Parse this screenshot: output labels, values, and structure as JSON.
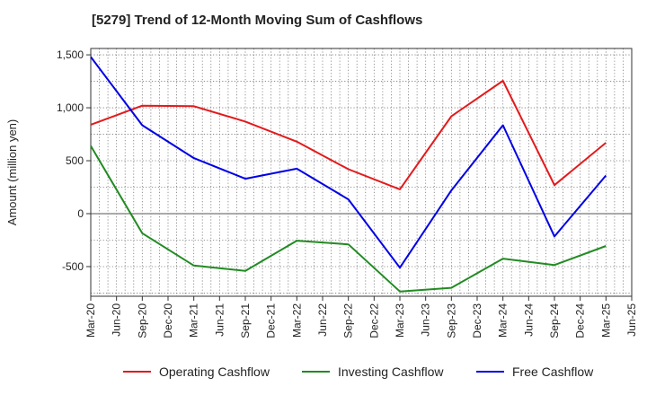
{
  "chart_data": {
    "type": "line",
    "title": "[5279]  Trend of 12-Month Moving Sum of Cashflows",
    "ylabel": "Amount (million yen)",
    "xlabel": "",
    "ylim": [
      -780,
      1560
    ],
    "yticks": [
      1500,
      1000,
      500,
      0,
      -500
    ],
    "ytick_labels": [
      "1,500",
      "1,000",
      "500",
      "0",
      "-500"
    ],
    "x_tick_labels": [
      "Mar-20",
      "Jun-20",
      "Sep-20",
      "Dec-20",
      "Mar-21",
      "Jun-21",
      "Sep-21",
      "Dec-21",
      "Mar-22",
      "Jun-22",
      "Sep-22",
      "Dec-22",
      "Mar-23",
      "Jun-23",
      "Sep-23",
      "Dec-23",
      "Mar-24",
      "Jun-24",
      "Sep-24",
      "Dec-24",
      "Mar-25",
      "Jun-25"
    ],
    "grid": true,
    "legend_position": "bottom",
    "series": [
      {
        "name": "Operating Cashflow",
        "color": "#e31a1c",
        "points": [
          [
            "Mar-20",
            840
          ],
          [
            "Sep-20",
            1020
          ],
          [
            "Mar-21",
            1015
          ],
          [
            "Sep-21",
            870
          ],
          [
            "Mar-22",
            680
          ],
          [
            "Sep-22",
            420
          ],
          [
            "Mar-23",
            230
          ],
          [
            "Sep-23",
            920
          ],
          [
            "Mar-24",
            1255
          ],
          [
            "Sep-24",
            270
          ],
          [
            "Mar-25",
            670
          ]
        ]
      },
      {
        "name": "Investing Cashflow",
        "color": "#228b22",
        "points": [
          [
            "Mar-20",
            640
          ],
          [
            "Sep-20",
            -185
          ],
          [
            "Mar-21",
            -490
          ],
          [
            "Sep-21",
            -540
          ],
          [
            "Mar-22",
            -255
          ],
          [
            "Sep-22",
            -290
          ],
          [
            "Mar-23",
            -735
          ],
          [
            "Sep-23",
            -700
          ],
          [
            "Mar-24",
            -425
          ],
          [
            "Sep-24",
            -485
          ],
          [
            "Mar-25",
            -305
          ]
        ]
      },
      {
        "name": "Free Cashflow",
        "color": "#0000e6",
        "points": [
          [
            "Mar-20",
            1480
          ],
          [
            "Sep-20",
            835
          ],
          [
            "Mar-21",
            525
          ],
          [
            "Sep-21",
            330
          ],
          [
            "Mar-22",
            425
          ],
          [
            "Sep-22",
            135
          ],
          [
            "Mar-23",
            -510
          ],
          [
            "Sep-23",
            220
          ],
          [
            "Mar-24",
            835
          ],
          [
            "Sep-24",
            -215
          ],
          [
            "Mar-25",
            360
          ]
        ]
      }
    ]
  }
}
